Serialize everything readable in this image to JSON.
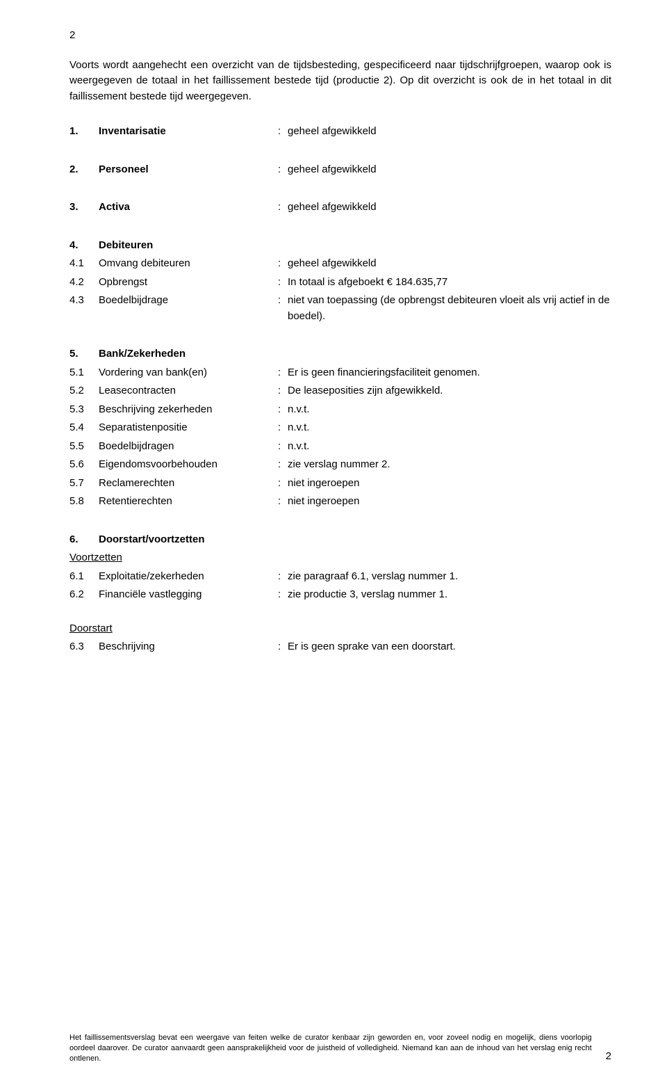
{
  "page_number_top": "2",
  "page_number_bottom": "2",
  "intro": "Voorts wordt aangehecht een overzicht van de tijdsbesteding, gespecificeerd naar tijdschrijfgroepen, waarop ook is weergegeven de totaal in het faillissement bestede tijd (productie 2). Op dit overzicht is ook de in het totaal in dit faillissement bestede tijd weergegeven.",
  "sections": {
    "s1": {
      "num": "1.",
      "title": "Inventarisatie",
      "value": "geheel afgewikkeld"
    },
    "s2": {
      "num": "2.",
      "title": "Personeel",
      "value": "geheel afgewikkeld"
    },
    "s3": {
      "num": "3.",
      "title": "Activa",
      "value": "geheel afgewikkeld"
    },
    "s4": {
      "num": "4.",
      "title": "Debiteuren"
    },
    "s4_1": {
      "num": "4.1",
      "label": "Omvang debiteuren",
      "value": "geheel afgewikkeld"
    },
    "s4_2": {
      "num": "4.2",
      "label": "Opbrengst",
      "value": "In totaal is afgeboekt € 184.635,77"
    },
    "s4_3": {
      "num": "4.3",
      "label": "Boedelbijdrage",
      "value": "niet van toepassing (de opbrengst debiteuren vloeit als vrij actief in de boedel)."
    },
    "s5": {
      "num": "5.",
      "title": "Bank/Zekerheden"
    },
    "s5_1": {
      "num": "5.1",
      "label": "Vordering van bank(en)",
      "value": "Er is geen financieringsfaciliteit genomen."
    },
    "s5_2": {
      "num": "5.2",
      "label": "Leasecontracten",
      "value": "De leaseposities zijn afgewikkeld."
    },
    "s5_3": {
      "num": "5.3",
      "label": "Beschrijving zekerheden",
      "value": "n.v.t."
    },
    "s5_4": {
      "num": "5.4",
      "label": "Separatistenpositie",
      "value": "n.v.t."
    },
    "s5_5": {
      "num": "5.5",
      "label": "Boedelbijdragen",
      "value": "n.v.t."
    },
    "s5_6": {
      "num": "5.6",
      "label": "Eigendomsvoorbehouden",
      "value": "zie verslag nummer 2."
    },
    "s5_7": {
      "num": "5.7",
      "label": "Reclamerechten",
      "value": "niet ingeroepen"
    },
    "s5_8": {
      "num": "5.8",
      "label": "Retentierechten",
      "value": "niet ingeroepen"
    },
    "s6": {
      "num": "6.",
      "title": "Doorstart/voortzetten"
    },
    "voortzetten": "Voortzetten",
    "s6_1": {
      "num": "6.1",
      "label": "Exploitatie/zekerheden",
      "value": "zie paragraaf 6.1, verslag nummer 1."
    },
    "s6_2": {
      "num": "6.2",
      "label": "Financiële vastlegging",
      "value": "zie productie 3, verslag nummer 1."
    },
    "doorstart": "Doorstart",
    "s6_3": {
      "num": "6.3",
      "label": "Beschrijving",
      "value": "Er is geen sprake van een doorstart."
    }
  },
  "colon": ":",
  "footer": "Het faillissementsverslag bevat een weergave van feiten welke de curator kenbaar zijn geworden en, voor zoveel nodig en mogelijk, diens voorlopig oordeel daarover. De curator aanvaardt geen aansprakelijkheid voor de juistheid of volledigheid. Niemand kan aan de inhoud van het verslag enig recht ontlenen."
}
